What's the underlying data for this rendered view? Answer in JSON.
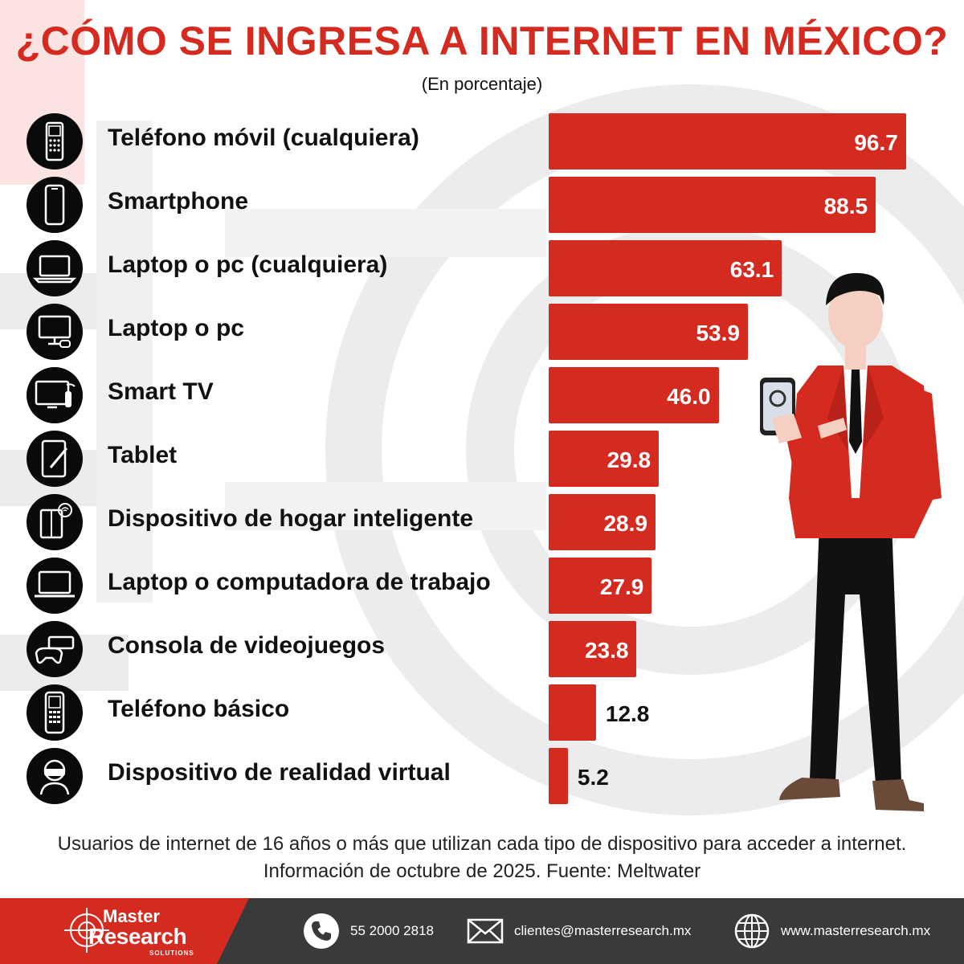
{
  "header": {
    "title": "¿CÓMO SE INGRESA A INTERNET EN MÉXICO?",
    "subtitle": "(En porcentaje)"
  },
  "chart_data": {
    "type": "bar",
    "orientation": "horizontal",
    "title": "¿CÓMO SE INGRESA A INTERNET EN MÉXICO?",
    "subtitle": "(En porcentaje)",
    "categories": [
      "Teléfono móvil (cualquiera)",
      "Smartphone",
      "Laptop o pc (cualquiera)",
      "Laptop o pc",
      "Smart TV",
      "Tablet",
      "Dispositivo de hogar inteligente",
      "Laptop o computadora de trabajo",
      "Consola de videojuegos",
      "Teléfono básico",
      "Dispositivo de realidad virtual"
    ],
    "values": [
      96.7,
      88.5,
      63.1,
      53.9,
      46.0,
      29.8,
      28.9,
      27.9,
      23.8,
      12.8,
      5.2
    ],
    "value_labels": [
      "96.7",
      "88.5",
      "63.1",
      "53.9",
      "46.0",
      "29.8",
      "28.9",
      "27.9",
      "23.8",
      "12.8",
      "5.2"
    ],
    "icons": [
      "mobile-phone-icon",
      "smartphone-icon",
      "laptop-icon",
      "desktop-pc-icon",
      "smart-tv-icon",
      "tablet-icon",
      "smart-home-device-icon",
      "work-laptop-icon",
      "game-console-icon",
      "basic-phone-icon",
      "vr-headset-icon"
    ],
    "xlim": [
      0,
      100
    ],
    "grid": false,
    "legend": "none",
    "bar_color": "#d42a20"
  },
  "footnote": "Usuarios de internet de 16 años o más que utilizan cada tipo de dispositivo para acceder a internet. Información de octubre de 2025. Fuente: Meltwater",
  "footer": {
    "brand_line1": "Master",
    "brand_line2": "Research",
    "brand_line3": "SOLUTIONS",
    "phone": "55 2000 2818",
    "email": "clientes@masterresearch.mx",
    "website": "www.masterresearch.mx"
  },
  "colors": {
    "accent": "#d42a20",
    "footer_bg": "#3a3a3a",
    "icon_bg": "#0a0a0a"
  }
}
